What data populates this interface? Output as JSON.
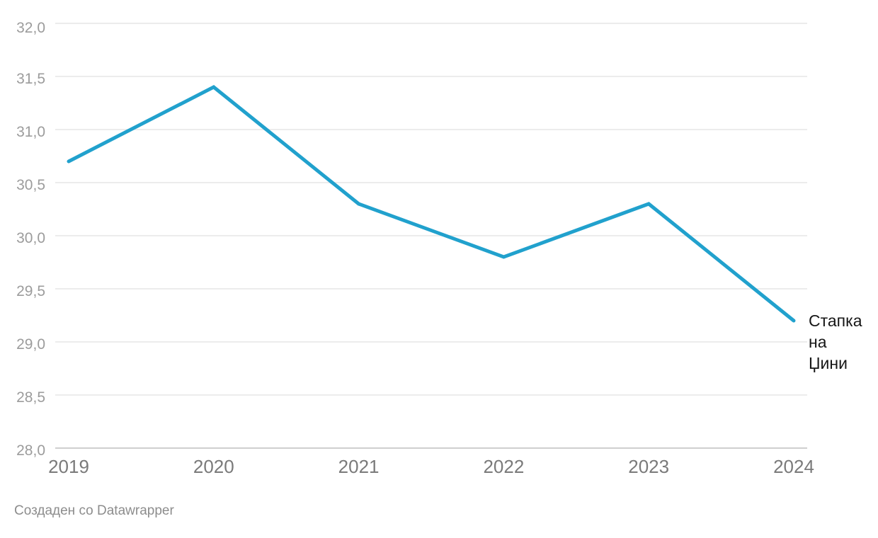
{
  "chart_data": {
    "type": "line",
    "title": "",
    "categories": [
      "2019",
      "2020",
      "2021",
      "2022",
      "2023",
      "2024"
    ],
    "series": [
      {
        "name": "Стапка на Џини",
        "values": [
          30.7,
          31.4,
          30.3,
          29.8,
          30.3,
          29.2
        ]
      }
    ],
    "xlabel": "",
    "ylabel": "",
    "ylim": [
      28.0,
      32.0
    ],
    "yticks": [
      32.0,
      31.5,
      31.0,
      30.5,
      30.0,
      29.5,
      29.0,
      28.5,
      28.0
    ],
    "ytick_labels": [
      "32,0",
      "31,5",
      "31,0",
      "30,5",
      "30,0",
      "29,5",
      "29,0",
      "28,5",
      "28,0"
    ],
    "grid": true,
    "legend_position": "end-of-line",
    "line_color": "#21a1cd"
  },
  "annotation": {
    "label": "Стапка на Џини",
    "lines": [
      "Стапка",
      "на",
      "Џини"
    ]
  },
  "footer": {
    "text": "Создаден со Datawrapper"
  },
  "colors": {
    "background": "#ffffff",
    "line": "#21a1cd",
    "grid": "#e6e6e6",
    "axis_baseline": "#cfcfcf",
    "y_tick_text": "#9c9c9c",
    "x_tick_text": "#7a7a7a",
    "annotation_text": "#161616",
    "footer_text": "#8d8d8d"
  }
}
